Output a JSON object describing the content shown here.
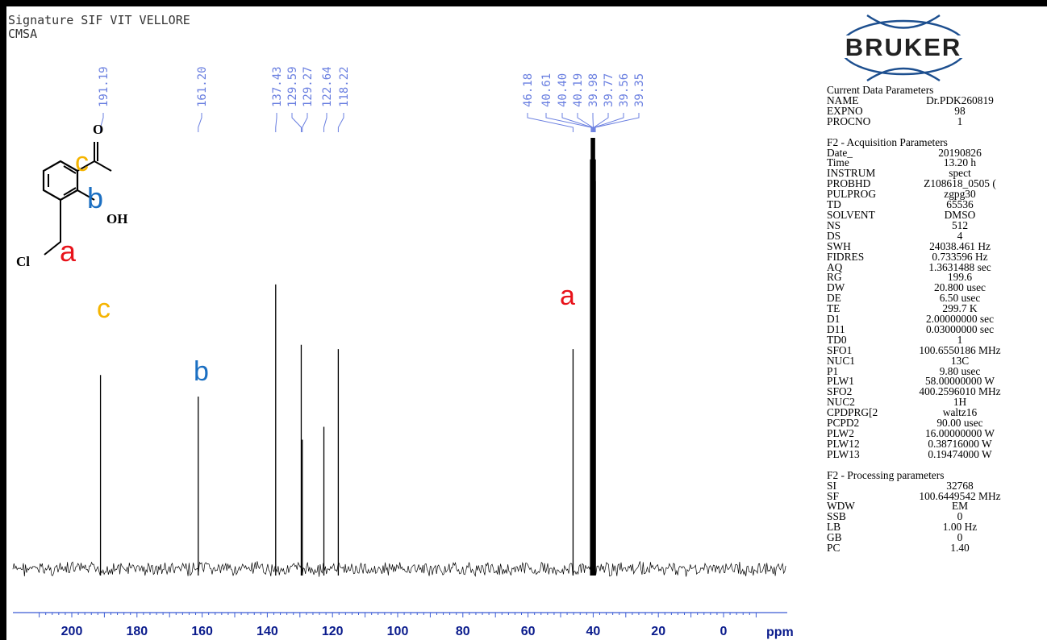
{
  "header": {
    "line1": "Signature SIF VIT VELLORE",
    "line2": "CMSA"
  },
  "logo_text": "BRUKER",
  "params": {
    "current_title": "Current Data Parameters",
    "current": [
      {
        "k": "NAME",
        "v": "Dr.PDK260819"
      },
      {
        "k": "EXPNO",
        "v": "98"
      },
      {
        "k": "PROCNO",
        "v": "1"
      }
    ],
    "acq_title": "F2 - Acquisition Parameters",
    "acq": [
      {
        "k": "Date_",
        "v": "20190826"
      },
      {
        "k": "Time",
        "v": "13.20 h"
      },
      {
        "k": "INSTRUM",
        "v": "spect"
      },
      {
        "k": "PROBHD",
        "v": "Z108618_0505 ("
      },
      {
        "k": "PULPROG",
        "v": "zgpg30"
      },
      {
        "k": "TD",
        "v": "65536"
      },
      {
        "k": "SOLVENT",
        "v": "DMSO"
      },
      {
        "k": "NS",
        "v": "512"
      },
      {
        "k": "DS",
        "v": "4"
      },
      {
        "k": "SWH",
        "v": "24038.461 Hz"
      },
      {
        "k": "FIDRES",
        "v": "0.733596 Hz"
      },
      {
        "k": "AQ",
        "v": "1.3631488 sec"
      },
      {
        "k": "RG",
        "v": "199.6"
      },
      {
        "k": "DW",
        "v": "20.800 usec"
      },
      {
        "k": "DE",
        "v": "6.50 usec"
      },
      {
        "k": "TE",
        "v": "299.7 K"
      },
      {
        "k": "D1",
        "v": "2.00000000 sec"
      },
      {
        "k": "D11",
        "v": "0.03000000 sec"
      },
      {
        "k": "TD0",
        "v": "1"
      },
      {
        "k": "SFO1",
        "v": "100.6550186 MHz"
      },
      {
        "k": "NUC1",
        "v": "13C"
      },
      {
        "k": "P1",
        "v": "9.80 usec"
      },
      {
        "k": "PLW1",
        "v": "58.00000000 W"
      },
      {
        "k": "SFO2",
        "v": "400.2596010 MHz"
      },
      {
        "k": "NUC2",
        "v": "1H"
      },
      {
        "k": "CPDPRG[2",
        "v": "waltz16"
      },
      {
        "k": "PCPD2",
        "v": "90.00 usec"
      },
      {
        "k": "PLW2",
        "v": "16.00000000 W"
      },
      {
        "k": "PLW12",
        "v": "0.38716000 W"
      },
      {
        "k": "PLW13",
        "v": "0.19474000 W"
      }
    ],
    "proc_title": "F2 - Processing parameters",
    "proc": [
      {
        "k": "SI",
        "v": "32768"
      },
      {
        "k": "SF",
        "v": "100.6449542 MHz"
      },
      {
        "k": "WDW",
        "v": "EM"
      },
      {
        "k": "SSB",
        "v": "0"
      },
      {
        "k": "LB",
        "v": "1.00 Hz"
      },
      {
        "k": "GB",
        "v": "0"
      },
      {
        "k": "PC",
        "v": "1.40"
      }
    ]
  },
  "molecule": {
    "atoms": [
      "O",
      "OH",
      "Cl"
    ]
  },
  "annotations": [
    {
      "label": "a",
      "color": "#e8121a"
    },
    {
      "label": "b",
      "color": "#1b6fc2"
    },
    {
      "label": "c",
      "color": "#f5b400"
    },
    {
      "label": "c",
      "color": "#f5b400"
    },
    {
      "label": "b",
      "color": "#1b6fc2"
    },
    {
      "label": "a",
      "color": "#e8121a"
    }
  ],
  "chart_data": {
    "type": "line",
    "title": "",
    "xlabel": "ppm",
    "ylabel": "",
    "xlim": [
      220,
      -8
    ],
    "x_reversed": true,
    "x_ticks": [
      200,
      180,
      160,
      140,
      120,
      100,
      80,
      60,
      40,
      20,
      0
    ],
    "grid": false,
    "peak_labels": [
      "191.19",
      "161.20",
      "137.43",
      "129.59",
      "129.27",
      "122.64",
      "118.22",
      "46.18",
      "40.61",
      "40.40",
      "40.19",
      "39.98",
      "39.77",
      "39.56",
      "39.35"
    ],
    "peaks": [
      {
        "ppm": 191.19,
        "intensity": 0.45,
        "assignment": "c"
      },
      {
        "ppm": 161.2,
        "intensity": 0.4,
        "assignment": "b"
      },
      {
        "ppm": 137.43,
        "intensity": 0.66
      },
      {
        "ppm": 129.59,
        "intensity": 0.52
      },
      {
        "ppm": 129.27,
        "intensity": 0.3
      },
      {
        "ppm": 122.64,
        "intensity": 0.33
      },
      {
        "ppm": 118.22,
        "intensity": 0.51
      },
      {
        "ppm": 46.18,
        "intensity": 0.51,
        "assignment": "a"
      },
      {
        "ppm": 40.61,
        "intensity": 0.95
      },
      {
        "ppm": 40.4,
        "intensity": 1.0
      },
      {
        "ppm": 40.19,
        "intensity": 1.0
      },
      {
        "ppm": 39.98,
        "intensity": 1.0
      },
      {
        "ppm": 39.77,
        "intensity": 1.0
      },
      {
        "ppm": 39.56,
        "intensity": 0.95
      },
      {
        "ppm": 39.35,
        "intensity": 0.9
      }
    ]
  },
  "colors": {
    "axis": "#3a5bd4",
    "tick_label": "#0a1b8c",
    "peak_label": "#6a7fe0",
    "spectrum": "#000000"
  }
}
